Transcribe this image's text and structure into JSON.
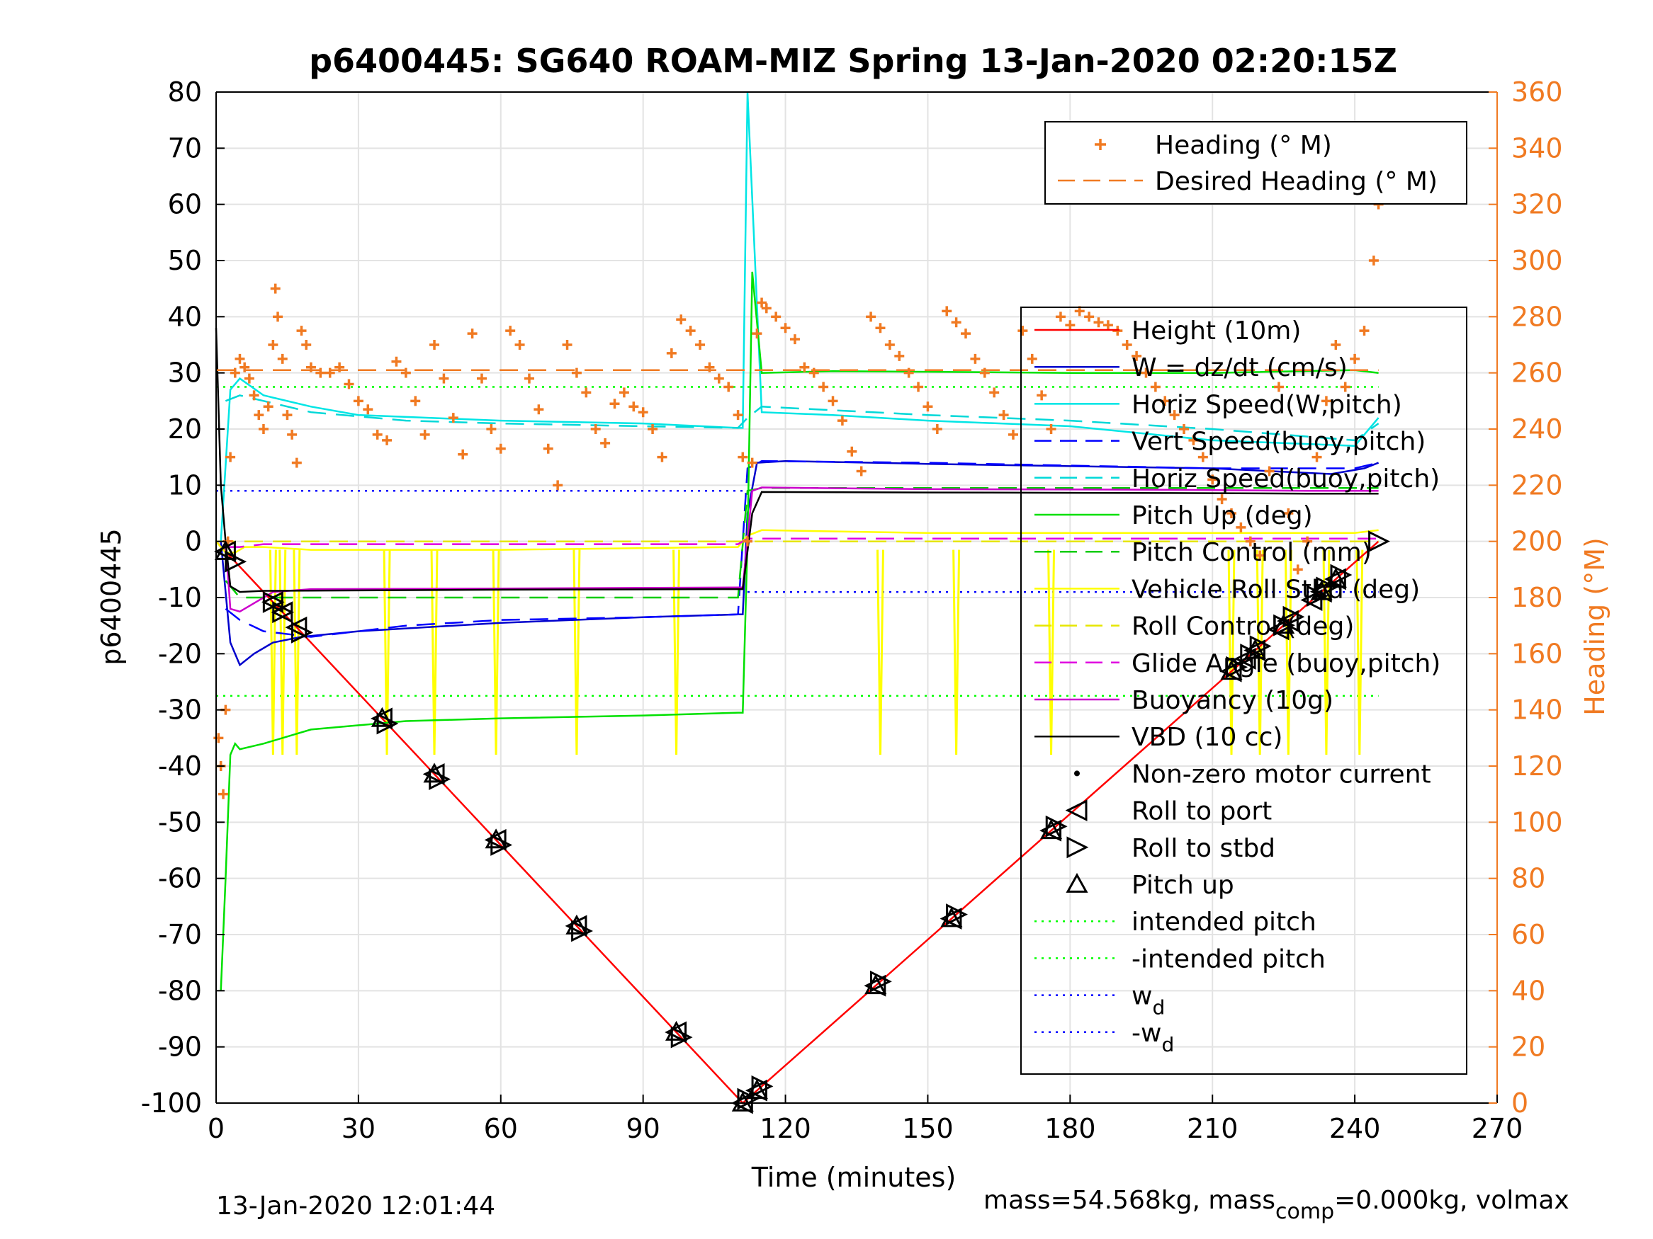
{
  "chart_data": {
    "type": "line",
    "title": "p6400445: SG640 ROAM-MIZ Spring 13-Jan-2020 02:20:15Z",
    "xlabel": "Time (minutes)",
    "ylabel": "p6400445",
    "ylabel_right": "Heading (°M)",
    "xlim": [
      0,
      270
    ],
    "ylim": [
      -100,
      80
    ],
    "ylim_right": [
      0,
      360
    ],
    "xticks": [
      "0",
      "30",
      "60",
      "90",
      "120",
      "150",
      "180",
      "210",
      "240",
      "270"
    ],
    "yticks": [
      "80",
      "70",
      "60",
      "50",
      "40",
      "30",
      "20",
      "10",
      "0",
      "-10",
      "-20",
      "-30",
      "-40",
      "-50",
      "-60",
      "-70",
      "-80",
      "-90",
      "-100"
    ],
    "yticks_right": [
      "360",
      "340",
      "320",
      "300",
      "280",
      "260",
      "240",
      "220",
      "200",
      "180",
      "160",
      "140",
      "120",
      "100",
      "80",
      "60",
      "40",
      "20",
      "0"
    ],
    "grid": true,
    "colors": {
      "height": "#ff0000",
      "w": "#0000cc",
      "horiz": "#00e5e5",
      "vert": "#0000ff",
      "horiz2": "#00d8d8",
      "pitch": "#00e000",
      "pitchctl": "#00cc00",
      "roll": "#ffff00",
      "rollctl": "#e6e600",
      "glide": "#e000e0",
      "buoy": "#cc00cc",
      "vbd": "#000000",
      "heading": "#f07a22",
      "intended": "#00ff00",
      "wd": "#0000ff"
    },
    "legend_top": [
      {
        "label": "Heading (° M)",
        "style": "plus",
        "color": "#f07a22"
      },
      {
        "label": "Desired Heading (° M)",
        "style": "dash",
        "color": "#f07a22"
      }
    ],
    "legend_main": [
      {
        "label": "Height (10m)",
        "style": "solid",
        "color": "#ff0000"
      },
      {
        "label": "W = dz/dt (cm/s)",
        "style": "solid",
        "color": "#0000cc"
      },
      {
        "label": "Horiz Speed(W,pitch)",
        "style": "solid",
        "color": "#00e5e5"
      },
      {
        "label": "Vert Speed(buoy,pitch)",
        "style": "dash",
        "color": "#0000ff"
      },
      {
        "label": "Horiz Speed(buoy,pitch)",
        "style": "dash",
        "color": "#00d8d8"
      },
      {
        "label": "Pitch Up (deg)",
        "style": "solid",
        "color": "#00e000"
      },
      {
        "label": "Pitch Control (mm)",
        "style": "dash",
        "color": "#00cc00"
      },
      {
        "label": "Vehicle Roll Stbd (deg)",
        "style": "solid",
        "color": "#ffff00"
      },
      {
        "label": "Roll Control (deg)",
        "style": "dash",
        "color": "#e6e600"
      },
      {
        "label": "Glide Angle (buoy,pitch)",
        "style": "dash",
        "color": "#e000e0"
      },
      {
        "label": "Buoyancy (10g)",
        "style": "solid",
        "color": "#cc00cc"
      },
      {
        "label": "VBD (10 cc)",
        "style": "solid",
        "color": "#000000"
      },
      {
        "label": "Non-zero motor current",
        "style": "dot",
        "color": "#000000"
      },
      {
        "label": "Roll to port",
        "style": "tri-left",
        "color": "#000000"
      },
      {
        "label": "Roll to stbd",
        "style": "tri-right",
        "color": "#000000"
      },
      {
        "label": "Pitch up",
        "style": "tri-up",
        "color": "#000000"
      },
      {
        "label": "intended pitch",
        "style": "dotted",
        "color": "#00ff00"
      },
      {
        "label": "-intended pitch",
        "style": "dotted",
        "color": "#00ff00"
      },
      {
        "label": "w",
        "sub": "d",
        "style": "dotted",
        "color": "#0000ff"
      },
      {
        "label": "-w",
        "sub": "d",
        "style": "dotted",
        "color": "#0000ff"
      }
    ],
    "series": [
      {
        "name": "Height (10m)",
        "key": "height",
        "x": [
          0,
          111,
          245
        ],
        "y": [
          0,
          -100,
          0
        ]
      },
      {
        "name": "W = dz/dt (cm/s)",
        "key": "w",
        "x": [
          1,
          3,
          5,
          8,
          12,
          18,
          30,
          60,
          90,
          110,
          111,
          112,
          114,
          120,
          150,
          180,
          210,
          235,
          242,
          245
        ],
        "y": [
          0,
          -18,
          -22,
          -20,
          -18,
          -17,
          -16,
          -14.5,
          -13.5,
          -13,
          -13,
          5,
          14,
          14.3,
          13.8,
          13.4,
          13,
          12,
          13,
          14
        ]
      },
      {
        "name": "Horiz Speed(W,pitch)",
        "key": "horiz",
        "x": [
          1,
          3,
          5,
          10,
          20,
          30,
          60,
          90,
          110,
          111,
          112,
          115,
          130,
          150,
          180,
          210,
          240,
          245
        ],
        "y": [
          0,
          27,
          29,
          26,
          24,
          22.5,
          21.5,
          21,
          20.2,
          20.2,
          80,
          23,
          22.5,
          21.5,
          20.5,
          18,
          17,
          22
        ]
      },
      {
        "name": "Vert Speed(buoy,pitch)",
        "key": "vert",
        "x": [
          2,
          5,
          10,
          20,
          40,
          60,
          90,
          110,
          112,
          115,
          150,
          180,
          210,
          240,
          245
        ],
        "y": [
          -12,
          -14,
          -16,
          -17,
          -15,
          -14,
          -13.5,
          -13,
          13,
          14.3,
          14,
          13.5,
          13,
          13,
          14
        ]
      },
      {
        "name": "Horiz Speed(buoy,pitch)",
        "key": "horiz2",
        "x": [
          2,
          5,
          10,
          20,
          40,
          60,
          90,
          110,
          112,
          115,
          150,
          180,
          210,
          240,
          245
        ],
        "y": [
          25,
          26,
          25,
          23,
          21.5,
          21,
          20.5,
          20.2,
          22,
          24,
          22.5,
          21.5,
          20,
          18,
          21
        ]
      },
      {
        "name": "Pitch Up (deg)",
        "key": "pitch",
        "x": [
          1,
          2,
          3,
          4,
          5,
          10,
          20,
          40,
          60,
          90,
          110,
          111,
          112,
          113,
          115,
          130,
          150,
          180,
          210,
          240,
          245
        ],
        "y": [
          -80,
          -60,
          -38,
          -36,
          -37,
          -36,
          -33.5,
          -32,
          -31.5,
          -31,
          -30.5,
          -30.5,
          0,
          48,
          30,
          30.3,
          30.2,
          30,
          30,
          30.5,
          30
        ]
      },
      {
        "name": "Pitch Control (mm)",
        "key": "pitchctl",
        "x": [
          2,
          5,
          10,
          30,
          60,
          90,
          110,
          112,
          115,
          150,
          180,
          210,
          240,
          245
        ],
        "y": [
          -7,
          -10,
          -10,
          -10,
          -10,
          -10,
          -10,
          9,
          9.5,
          9.5,
          9.5,
          9.5,
          9.5,
          9.5
        ]
      },
      {
        "name": "Vehicle Roll Stbd (deg)",
        "key": "roll",
        "x": [
          0,
          2,
          4,
          6,
          10,
          20,
          60,
          110,
          112,
          115,
          150,
          180,
          210,
          240,
          245
        ],
        "y": [
          0,
          -2,
          -2,
          -1,
          -1,
          -1.5,
          -1.5,
          -1,
          1,
          2,
          1.5,
          1.5,
          1.5,
          1.5,
          2
        ]
      },
      {
        "name": "Roll Control (deg)",
        "key": "rollctl",
        "x": [
          0,
          111,
          112,
          245
        ],
        "y": [
          0,
          0,
          0,
          0
        ]
      },
      {
        "name": "Glide Angle (buoy,pitch)",
        "key": "glide",
        "x": [
          2,
          5,
          10,
          60,
          110,
          112,
          115,
          150,
          210,
          245
        ],
        "y": [
          -1,
          -1,
          -0.5,
          -0.5,
          -0.5,
          0.5,
          0.5,
          0.5,
          0.5,
          0.5
        ]
      },
      {
        "name": "Buoyancy (10g)",
        "key": "buoy",
        "x": [
          2,
          3,
          5,
          8,
          12,
          20,
          60,
          110,
          111,
          113,
          115,
          150,
          200,
          230,
          245
        ],
        "y": [
          0,
          -12,
          -12.5,
          -11,
          -9,
          -8.5,
          -8.4,
          -8.2,
          -8.2,
          9,
          9.6,
          9.3,
          9.2,
          9,
          9
        ]
      },
      {
        "name": "VBD (10 cc)",
        "key": "vbd",
        "x": [
          0,
          1,
          2,
          3,
          5,
          10,
          60,
          110,
          111,
          113,
          115,
          150,
          200,
          230,
          245
        ],
        "y": [
          38,
          10,
          0,
          -8,
          -9,
          -8.8,
          -8.6,
          -8.5,
          -8.5,
          5,
          8.8,
          8.7,
          8.6,
          8.5,
          8.5
        ]
      },
      {
        "name": "Heading (° M)",
        "key": "heading",
        "axis": "right",
        "style": "plus",
        "x": [
          0.5,
          1,
          1.5,
          2,
          2.5,
          3,
          4,
          5,
          6,
          7,
          8,
          9,
          10,
          11,
          12,
          12.5,
          13,
          14,
          15,
          16,
          17,
          18,
          19,
          20,
          22,
          24,
          26,
          28,
          30,
          32,
          34,
          36,
          38,
          40,
          42,
          44,
          46,
          48,
          50,
          52,
          54,
          56,
          58,
          60,
          62,
          64,
          66,
          68,
          70,
          72,
          74,
          76,
          78,
          80,
          82,
          84,
          86,
          88,
          90,
          92,
          94,
          96,
          98,
          100,
          102,
          104,
          106,
          108,
          110,
          111,
          112,
          113,
          114,
          115,
          116,
          118,
          120,
          122,
          124,
          126,
          128,
          130,
          132,
          134,
          136,
          138,
          140,
          142,
          144,
          146,
          148,
          150,
          152,
          154,
          156,
          158,
          160,
          162,
          164,
          166,
          168,
          170,
          172,
          174,
          176,
          178,
          180,
          182,
          184,
          186,
          188,
          190,
          192,
          194,
          196,
          198,
          200,
          202,
          204,
          206,
          208,
          210,
          212,
          214,
          216,
          218,
          220,
          222,
          224,
          226,
          228,
          230,
          232,
          234,
          236,
          238,
          240,
          242,
          244,
          245
        ],
        "y": [
          130,
          120,
          110,
          140,
          200,
          230,
          260,
          265,
          262,
          258,
          252,
          245,
          240,
          248,
          270,
          290,
          280,
          265,
          245,
          238,
          228,
          275,
          270,
          262,
          260,
          260,
          262,
          256,
          250,
          247,
          238,
          236,
          264,
          260,
          250,
          238,
          270,
          258,
          244,
          231,
          274,
          258,
          240,
          233,
          275,
          270,
          258,
          247,
          233,
          220,
          270,
          260,
          253,
          240,
          235,
          249,
          253,
          248,
          246,
          240,
          230,
          267,
          279,
          275,
          270,
          262,
          258,
          255,
          245,
          230,
          200,
          228,
          274,
          285,
          283,
          280,
          276,
          272,
          262,
          260,
          255,
          250,
          243,
          232,
          225,
          280,
          276,
          270,
          266,
          260,
          255,
          248,
          240,
          282,
          278,
          274,
          265,
          260,
          253,
          245,
          238,
          275,
          265,
          252,
          240,
          280,
          277,
          282,
          280,
          278,
          277,
          275,
          270,
          266,
          260,
          255,
          250,
          245,
          240,
          236,
          230,
          222,
          215,
          210,
          205,
          200,
          195,
          225,
          255,
          210,
          190,
          200,
          230,
          250,
          270,
          255,
          265,
          275,
          300,
          320
        ]
      },
      {
        "name": "Desired Heading (° M)",
        "key": "desired",
        "axis": "right",
        "style": "dash",
        "x": [
          0,
          245
        ],
        "y": [
          261,
          261
        ]
      }
    ],
    "hlines": [
      {
        "name": "intended pitch",
        "y": 27.5,
        "x": [
          0,
          245
        ],
        "color": "#00ff00"
      },
      {
        "name": "-intended pitch",
        "y": -27.5,
        "x": [
          0,
          245
        ],
        "color": "#00ff00"
      },
      {
        "name": "w_d",
        "y": 9,
        "x": [
          0,
          112
        ],
        "color": "#0000ff"
      },
      {
        "name": "-w_d",
        "y": -9,
        "x": [
          112,
          245
        ],
        "color": "#0000ff"
      }
    ],
    "roll_spikes_x": [
      12,
      14,
      17,
      36,
      46,
      59,
      76,
      97,
      140,
      156,
      176,
      214,
      220,
      226,
      234,
      241
    ],
    "markers": {
      "roll_port_x": [
        2,
        12,
        14,
        17,
        35,
        46,
        59,
        76,
        97,
        111,
        114,
        139,
        155,
        176,
        214,
        217,
        219,
        224,
        226,
        231,
        233,
        236
      ],
      "roll_stbd_x": [
        4,
        12,
        14,
        18,
        36,
        47,
        60,
        77,
        98,
        112,
        115,
        140,
        156,
        177,
        215,
        218,
        220,
        225,
        227,
        232,
        234,
        237,
        245
      ],
      "pitch_up_x": [
        2,
        35,
        46,
        59,
        76,
        97,
        111,
        114,
        139,
        155,
        176,
        214,
        219,
        225,
        233,
        236
      ]
    }
  },
  "footer": {
    "timestamp": "13-Jan-2020 12:01:44",
    "mass_text": "mass=54.568kg, mass",
    "mass_sub": "comp",
    "mass_tail": "=0.000kg, volmax"
  }
}
